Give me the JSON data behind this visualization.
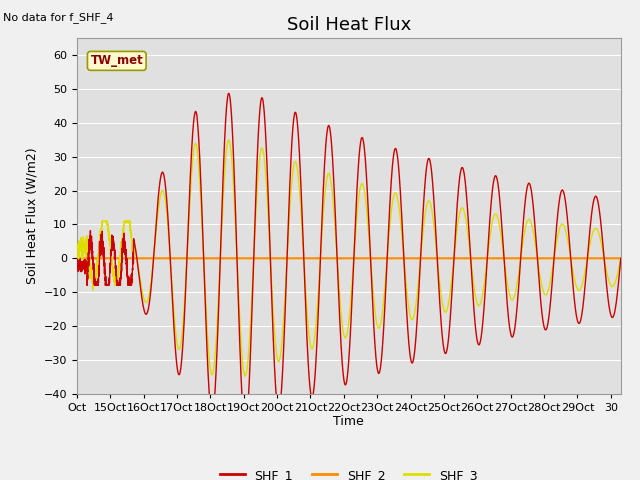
{
  "title": "Soil Heat Flux",
  "annotation_top_left": "No data for f_SHF_4",
  "tw_met_label": "TW_met",
  "ylabel": "Soil Heat Flux (W/m2)",
  "xlabel": "Time",
  "ylim": [
    -40,
    65
  ],
  "yticks": [
    -40,
    -30,
    -20,
    -10,
    0,
    10,
    20,
    30,
    40,
    50,
    60
  ],
  "xlim_start": 14.0,
  "xlim_end": 30.3,
  "xtick_positions": [
    14,
    15,
    16,
    17,
    18,
    19,
    20,
    21,
    22,
    23,
    24,
    25,
    26,
    27,
    28,
    29,
    30
  ],
  "xtick_labels": [
    "Oct",
    "15Oct",
    "16Oct",
    "17Oct",
    "18Oct",
    "19Oct",
    "20Oct",
    "21Oct",
    "22Oct",
    "23Oct",
    "24Oct",
    "25Oct",
    "26Oct",
    "27Oct",
    "28Oct",
    "29Oct",
    "30"
  ],
  "color_shf1": "#cc0000",
  "color_shf2": "#ff8c00",
  "color_shf3": "#dddd00",
  "legend_entries": [
    "SHF_1",
    "SHF_2",
    "SHF_3"
  ],
  "background_color": "#e8e8e8",
  "plot_bg_color": "#e0e0e0",
  "grid_color": "#ffffff",
  "title_fontsize": 13,
  "axis_label_fontsize": 9,
  "tick_label_fontsize": 8
}
